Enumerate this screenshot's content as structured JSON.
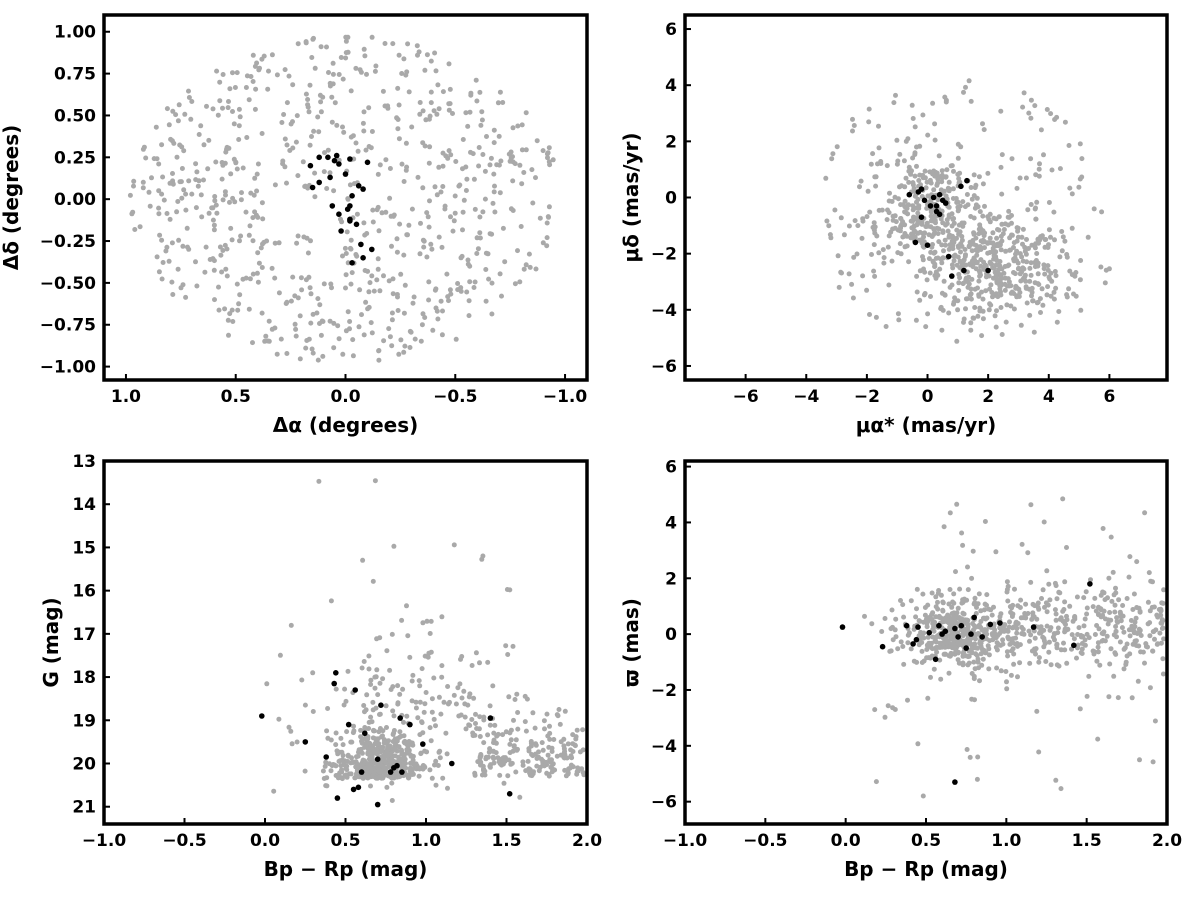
{
  "colors": {
    "field": "#a9a9a9",
    "members": "#000000",
    "axes": "#000000",
    "background": "#ffffff"
  },
  "chart_data": [
    {
      "type": "scatter",
      "title": "",
      "xlabel": "Δα (degrees)",
      "ylabel": "Δδ (degrees)",
      "xlim": [
        1.1,
        -1.1
      ],
      "ylim": [
        -1.08,
        1.1
      ],
      "x_reversed": true,
      "xticks": [
        1.0,
        0.5,
        0.0,
        -0.5,
        -1.0
      ],
      "xtick_labels": [
        "1.0",
        "0.5",
        "0.0",
        "−0.5",
        "−1.0"
      ],
      "yticks": [
        -1.0,
        -0.75,
        -0.5,
        -0.25,
        0.0,
        0.25,
        0.5,
        0.75,
        1.0
      ],
      "ytick_labels": [
        "−1.00",
        "−0.75",
        "−0.50",
        "−0.25",
        "0.00",
        "0.25",
        "0.50",
        "0.75",
        "1.00"
      ],
      "field_distribution": "uniform disk, center (0,0), radius 1.0",
      "field_count": 750,
      "members": {
        "x": [
          0.05,
          0.08,
          0.03,
          0.12,
          0.0,
          -0.02,
          0.07,
          0.04,
          -0.08,
          0.12,
          0.15,
          0.06,
          -0.06,
          0.16,
          -0.03,
          -0.05,
          -0.02,
          -0.07,
          -0.12,
          -0.08,
          0.02,
          -0.03,
          -0.1,
          -0.02,
          -0.01,
          -0.02,
          0.03
        ],
        "y": [
          0.23,
          0.25,
          0.21,
          0.25,
          0.15,
          0.24,
          0.13,
          0.26,
          0.06,
          0.1,
          0.07,
          -0.04,
          0.08,
          0.2,
          0.02,
          -0.15,
          -0.13,
          -0.27,
          -0.3,
          -0.35,
          -0.19,
          -0.38,
          0.22,
          -0.04,
          -0.06,
          -0.12,
          -0.09
        ]
      }
    },
    {
      "type": "scatter",
      "title": "",
      "xlabel": "μα* (mas/yr)",
      "ylabel": "μδ (mas/yr)",
      "xlim": [
        -8.0,
        7.9
      ],
      "ylim": [
        -6.5,
        6.5
      ],
      "xticks": [
        -6,
        -4,
        -2,
        0,
        2,
        4,
        6
      ],
      "xtick_labels": [
        "−6",
        "−4",
        "−2",
        "0",
        "2",
        "4",
        "6"
      ],
      "yticks": [
        -6,
        -4,
        -2,
        0,
        2,
        4,
        6
      ],
      "ytick_labels": [
        "−6",
        "−4",
        "−2",
        "0",
        "2",
        "4",
        "6"
      ],
      "field_distribution": "dense clumps near (0,-0.5) and (2.5,-2.5), scattered envelope to |μ|~5",
      "field_count": 900,
      "members": {
        "x": [
          -0.6,
          -0.2,
          0.2,
          0.5,
          0.3,
          -0.1,
          0.1,
          0.4,
          -0.4,
          0.0,
          1.1,
          1.3,
          0.7,
          -0.3,
          1.2,
          0.8,
          2.0,
          0.3,
          0.6,
          -0.2,
          0.4
        ],
        "y": [
          0.1,
          0.3,
          0.0,
          -0.1,
          -0.5,
          -0.1,
          -0.3,
          -0.6,
          -1.6,
          -1.7,
          0.4,
          0.6,
          -2.1,
          0.2,
          -2.6,
          -2.8,
          -2.6,
          -0.3,
          -0.2,
          -0.7,
          0.1
        ]
      }
    },
    {
      "type": "scatter",
      "title": "",
      "xlabel": "Bp − Rp (mag)",
      "ylabel": "G (mag)",
      "xlim": [
        -1.0,
        2.0
      ],
      "ylim": [
        13.0,
        21.4
      ],
      "y_reversed": true,
      "xticks": [
        -1.0,
        -0.5,
        0.0,
        0.5,
        1.0,
        1.5,
        2.0
      ],
      "xtick_labels": [
        "−1.0",
        "−0.5",
        "0.0",
        "0.5",
        "1.0",
        "1.5",
        "2.0"
      ],
      "yticks": [
        13,
        14,
        15,
        16,
        17,
        18,
        19,
        20,
        21
      ],
      "ytick_labels": [
        "13",
        "14",
        "15",
        "16",
        "17",
        "18",
        "19",
        "20",
        "21"
      ],
      "field_distribution": "dense near Bp-Rp 0.5-1.0, G 19-21; sparse tail toward bright magnitudes",
      "field_count": 850,
      "members": {
        "x": [
          0.45,
          0.55,
          0.58,
          0.7,
          0.85,
          0.8,
          0.38,
          0.6,
          0.25,
          0.52,
          -0.02,
          0.62,
          0.9,
          0.72,
          0.84,
          0.98,
          0.56,
          0.43,
          0.44,
          1.16,
          1.4,
          1.52,
          0.7,
          0.78,
          0.82
        ],
        "y": [
          20.8,
          20.6,
          20.55,
          20.95,
          20.2,
          20.1,
          19.85,
          20.2,
          19.5,
          19.1,
          18.9,
          19.3,
          19.1,
          18.65,
          18.95,
          19.55,
          18.3,
          18.15,
          17.9,
          20.0,
          18.95,
          20.7,
          19.9,
          20.2,
          20.05
        ]
      }
    },
    {
      "type": "scatter",
      "title": "",
      "xlabel": "Bp − Rp (mag)",
      "ylabel": "ϖ (mas)",
      "xlim": [
        -1.0,
        2.0
      ],
      "ylim": [
        -6.8,
        6.2
      ],
      "xticks": [
        -1.0,
        -0.5,
        0.0,
        0.5,
        1.0,
        1.5,
        2.0
      ],
      "xtick_labels": [
        "−1.0",
        "−0.5",
        "0.0",
        "0.5",
        "1.0",
        "1.5",
        "2.0"
      ],
      "yticks": [
        -6,
        -4,
        -2,
        0,
        2,
        4,
        6
      ],
      "ytick_labels": [
        "−6",
        "−4",
        "−2",
        "0",
        "2",
        "4",
        "6"
      ],
      "field_distribution": "horizontal band around ϖ≈0 from Bp-Rp 0.3 to 2.0, scatter to ±6",
      "field_count": 850,
      "members": {
        "x": [
          -0.02,
          0.23,
          0.38,
          0.42,
          0.45,
          0.52,
          0.56,
          0.58,
          0.62,
          0.68,
          0.7,
          0.75,
          0.8,
          0.85,
          0.9,
          0.96,
          1.17,
          1.42,
          1.52,
          0.68,
          0.44,
          0.6,
          0.78,
          0.72
        ],
        "y": [
          0.25,
          -0.45,
          0.3,
          -0.35,
          0.25,
          0.05,
          -0.9,
          0.3,
          0.1,
          0.2,
          -0.1,
          -0.5,
          0.6,
          -0.1,
          0.35,
          0.4,
          0.25,
          -0.4,
          1.8,
          -5.3,
          -0.2,
          0.0,
          0.0,
          0.3
        ]
      }
    }
  ]
}
